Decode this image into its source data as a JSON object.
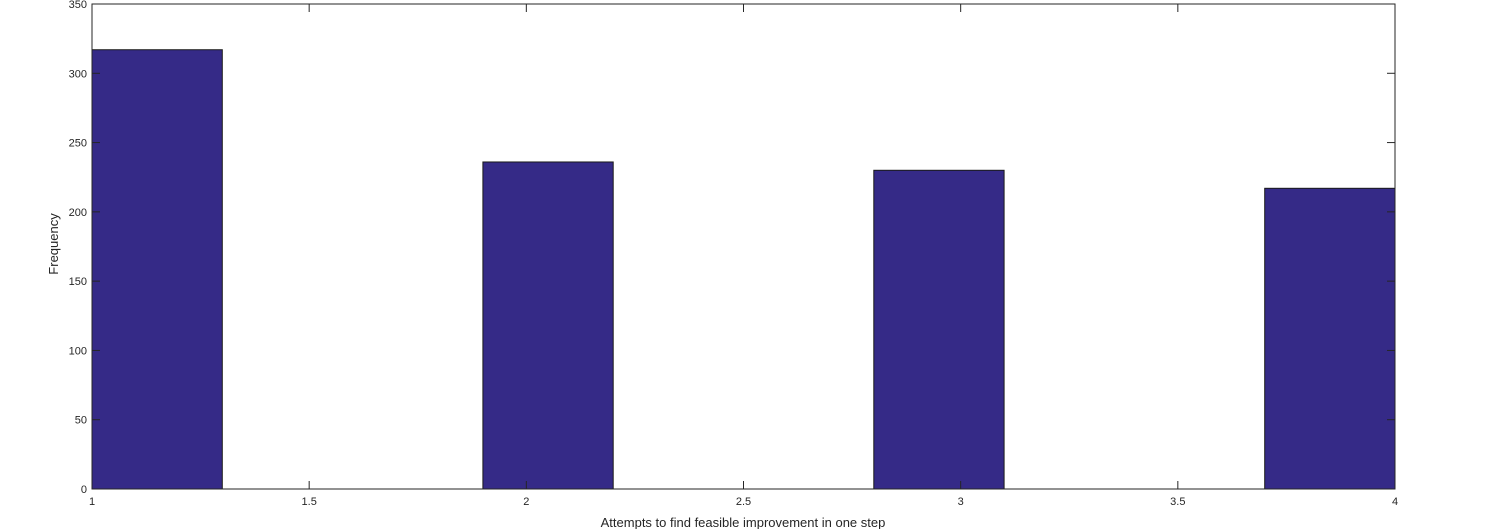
{
  "chart_data": {
    "type": "bar",
    "title": "",
    "xlabel": "Attempts to find feasible improvement in one step",
    "ylabel": "Frequency",
    "xlim": [
      1,
      4
    ],
    "ylim": [
      0,
      350
    ],
    "bin_width": 0.3,
    "bars": [
      {
        "x_start": 1.0,
        "x_end": 1.3,
        "value": 317
      },
      {
        "x_start": 1.9,
        "x_end": 2.2,
        "value": 236
      },
      {
        "x_start": 2.8,
        "x_end": 3.1,
        "value": 230
      },
      {
        "x_start": 3.7,
        "x_end": 4.0,
        "value": 217
      }
    ],
    "x_ticks": [
      "1",
      "1.5",
      "2",
      "2.5",
      "3",
      "3.5",
      "4"
    ],
    "x_tick_values": [
      1,
      1.5,
      2,
      2.5,
      3,
      3.5,
      4
    ],
    "y_ticks": [
      "0",
      "50",
      "100",
      "150",
      "200",
      "250",
      "300",
      "350"
    ],
    "y_tick_values": [
      0,
      50,
      100,
      150,
      200,
      250,
      300,
      350
    ],
    "grid": false,
    "colors": {
      "bar_fill": "#352a87",
      "bar_edge": "#1a1a1a",
      "axis": "#262626"
    }
  }
}
